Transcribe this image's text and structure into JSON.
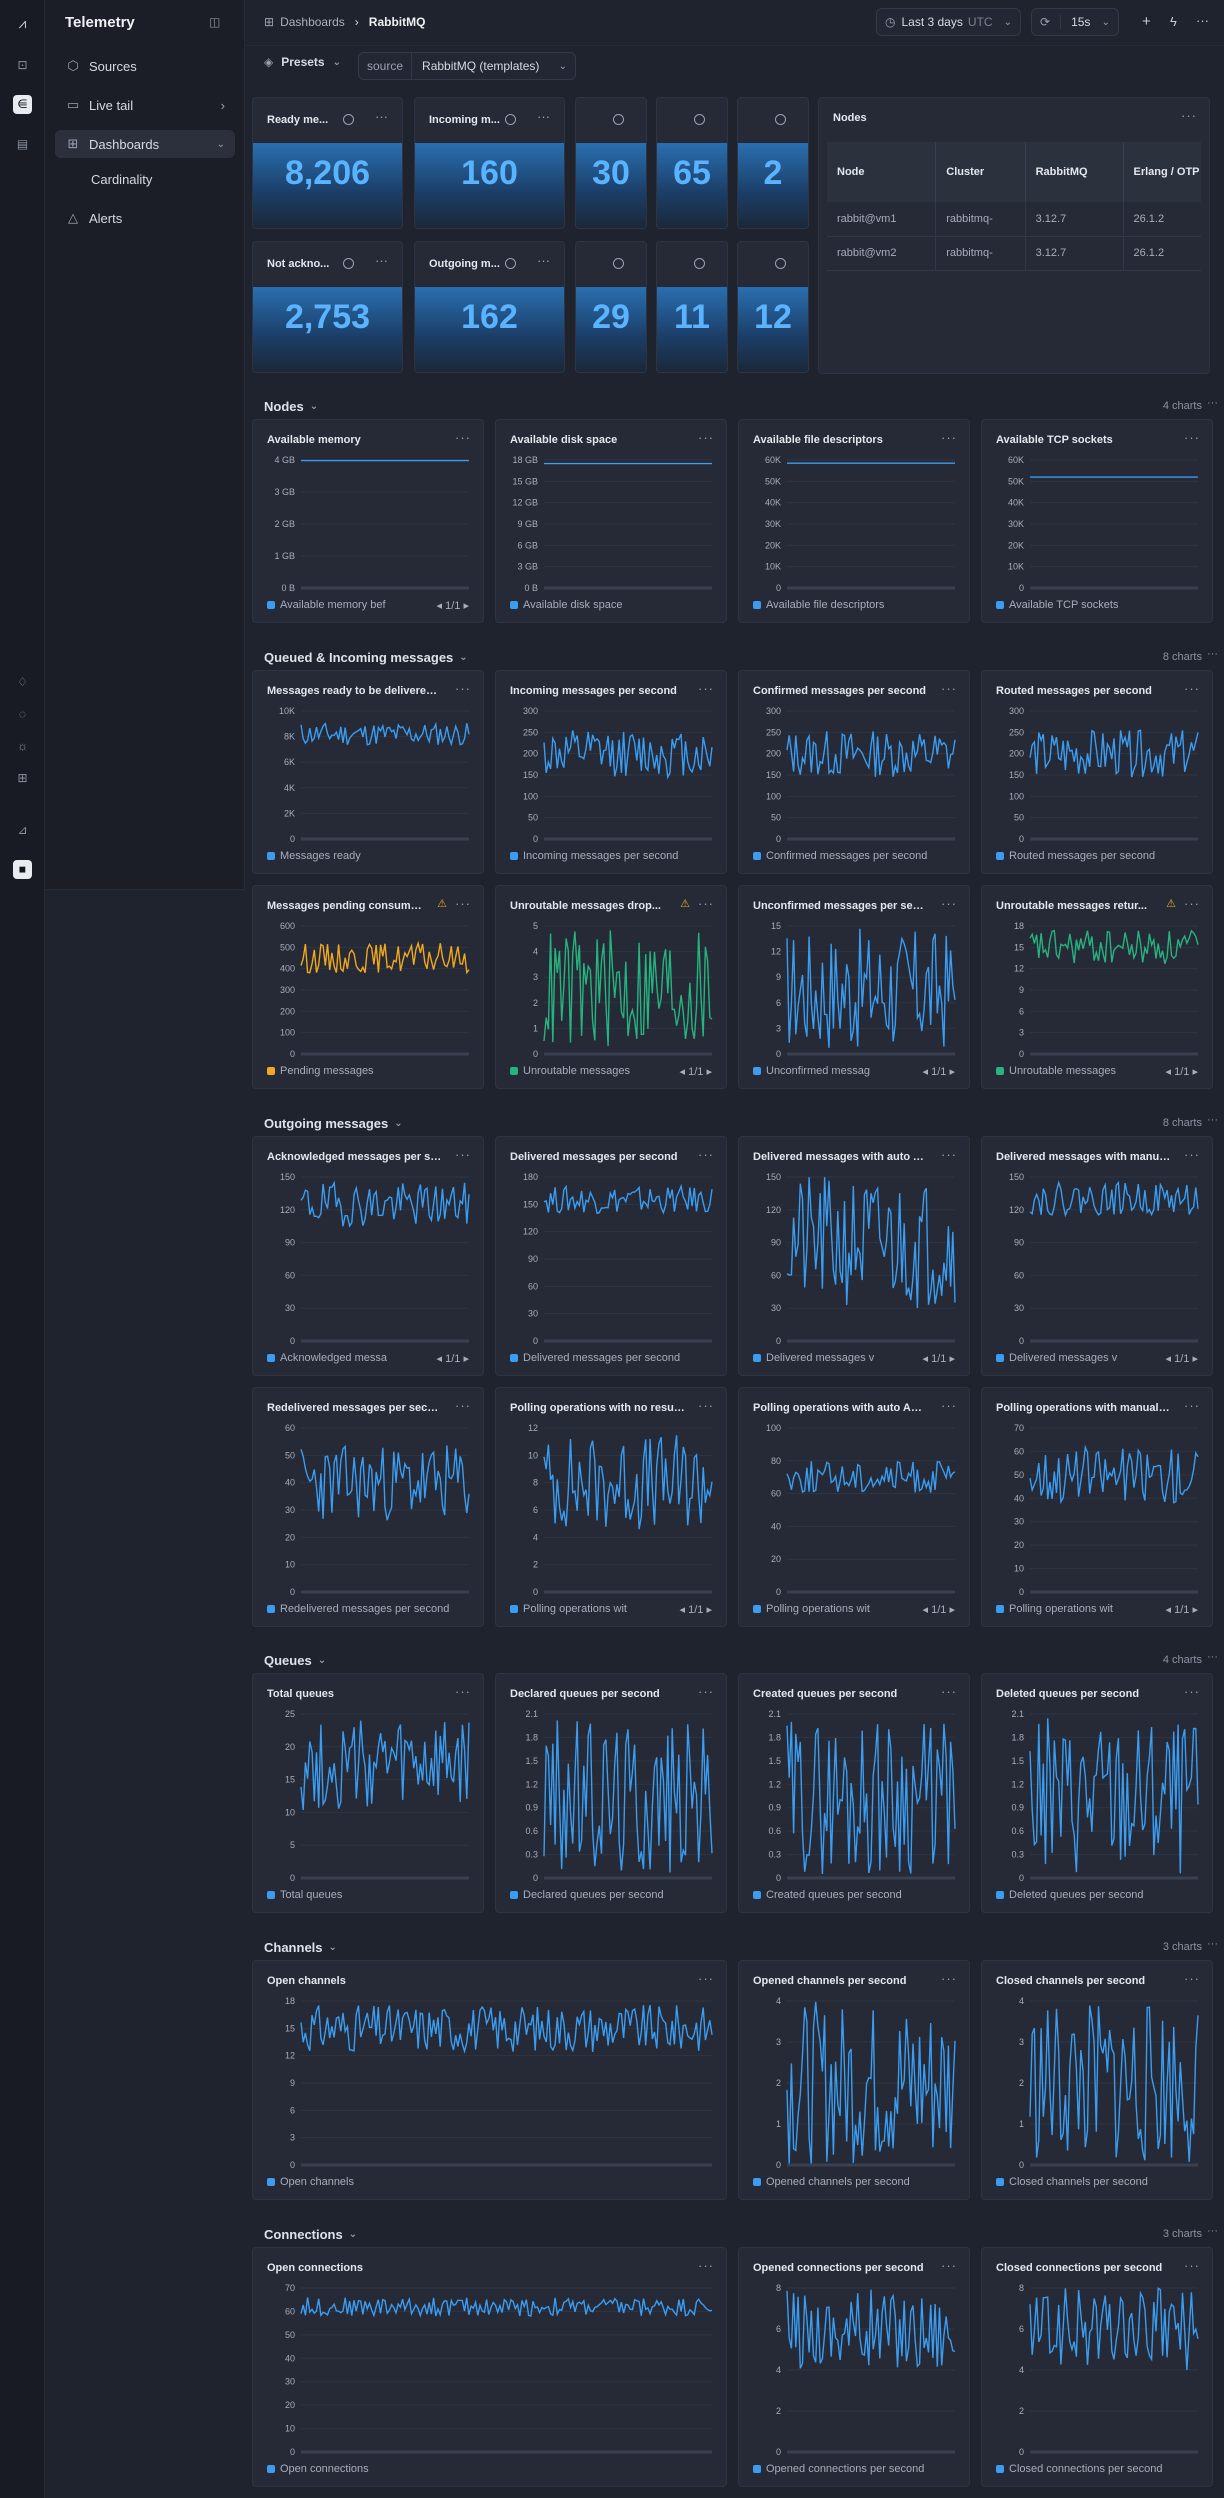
{
  "app": {
    "title": "Telemetry"
  },
  "sidebar": {
    "items": [
      {
        "label": "Sources"
      },
      {
        "label": "Live tail"
      },
      {
        "label": "Dashboards"
      },
      {
        "label": "Cardinality"
      },
      {
        "label": "Alerts"
      }
    ]
  },
  "breadcrumb": {
    "root": "Dashboards",
    "current": "RabbitMQ"
  },
  "toolbar": {
    "time_range": "Last 3 days",
    "timezone": "UTC",
    "refresh": "15s"
  },
  "presets": {
    "label": "Presets",
    "source_label": "source",
    "source_value": "RabbitMQ (templates)"
  },
  "stats": [
    {
      "title": "Ready me...",
      "value": "8,206"
    },
    {
      "title": "Incoming m...",
      "value": "160"
    },
    {
      "title": "",
      "value": "30"
    },
    {
      "title": "",
      "value": "65"
    },
    {
      "title": "",
      "value": "2"
    },
    {
      "title": "Not ackno...",
      "value": "2,753"
    },
    {
      "title": "Outgoing m...",
      "value": "162"
    },
    {
      "title": "",
      "value": "29"
    },
    {
      "title": "",
      "value": "11"
    },
    {
      "title": "",
      "value": "12"
    }
  ],
  "nodes_table": {
    "title": "Nodes",
    "columns": [
      "Node",
      "Cluster",
      "RabbitMQ",
      "Erlang / OTP"
    ],
    "rows": [
      [
        "rabbit@vm1",
        "rabbitmq-",
        "3.12.7",
        "26.1.2"
      ],
      [
        "rabbit@vm2",
        "rabbitmq-",
        "3.12.7",
        "26.1.2"
      ]
    ]
  },
  "colors": {
    "blue": "#3b9cf0",
    "orange": "#f0a81e",
    "green": "#26b380",
    "bg": "#1f232e",
    "panel": "#252a36"
  },
  "sections": [
    {
      "title": "Nodes",
      "count": "4 charts"
    },
    {
      "title": "Queued & Incoming messages",
      "count": "8 charts"
    },
    {
      "title": "Outgoing messages",
      "count": "8 charts"
    },
    {
      "title": "Queues",
      "count": "4 charts"
    },
    {
      "title": "Channels",
      "count": "3 charts"
    },
    {
      "title": "Connections",
      "count": "3 charts"
    }
  ],
  "chart_data": [
    {
      "id": "avail-mem",
      "type": "line",
      "title": "Available memory",
      "ylim": [
        0,
        4
      ],
      "ticks": [
        "4 GB",
        "3 GB",
        "2 GB",
        "1 GB",
        "0 B"
      ],
      "series": [
        {
          "name": "Available memory bef",
          "value": 3.98,
          "noise": 0,
          "color": "blue"
        }
      ],
      "pager": "1/1",
      "legend_label": "Available memory bef"
    },
    {
      "id": "avail-disk",
      "type": "line",
      "title": "Available disk space",
      "ylim": [
        0,
        18
      ],
      "ticks": [
        "18 GB",
        "15 GB",
        "12 GB",
        "9 GB",
        "6 GB",
        "3 GB",
        "0 B"
      ],
      "series": [
        {
          "name": "Available disk space",
          "value": 17.5,
          "noise": 0,
          "color": "blue"
        }
      ],
      "legend_label": "Available disk space"
    },
    {
      "id": "avail-fd",
      "type": "line",
      "title": "Available file descriptors",
      "ylim": [
        0,
        60000
      ],
      "ticks": [
        "60K",
        "50K",
        "40K",
        "30K",
        "20K",
        "10K",
        "0"
      ],
      "series": [
        {
          "name": "Available file descriptors",
          "value": 58500,
          "noise": 0,
          "color": "blue"
        }
      ],
      "legend_label": "Available file descriptors"
    },
    {
      "id": "avail-tcp",
      "type": "line",
      "title": "Available TCP sockets",
      "ylim": [
        0,
        60000
      ],
      "ticks": [
        "60K",
        "50K",
        "40K",
        "30K",
        "20K",
        "10K",
        "0"
      ],
      "series": [
        {
          "name": "Available TCP sockets",
          "value": 52000,
          "noise": 0,
          "color": "blue"
        }
      ],
      "legend_label": "Available TCP sockets"
    },
    {
      "id": "msg-ready",
      "type": "line",
      "title": "Messages ready to be delivered to...",
      "ylim": [
        0,
        10000
      ],
      "ticks": [
        "10K",
        "8K",
        "6K",
        "4K",
        "2K",
        "0"
      ],
      "series": [
        {
          "name": "Messages ready",
          "value": 8200,
          "noise": 900,
          "color": "blue"
        }
      ],
      "legend_label": "Messages ready"
    },
    {
      "id": "incoming",
      "type": "line",
      "title": "Incoming messages per second",
      "ylim": [
        0,
        300
      ],
      "ticks": [
        "300",
        "250",
        "200",
        "150",
        "100",
        "50",
        "0"
      ],
      "series": [
        {
          "name": "Incoming messages per second",
          "value": 200,
          "noise": 55,
          "color": "blue"
        }
      ],
      "legend_label": "Incoming messages per second"
    },
    {
      "id": "confirmed",
      "type": "line",
      "title": "Confirmed messages per second",
      "ylim": [
        0,
        300
      ],
      "ticks": [
        "300",
        "250",
        "200",
        "150",
        "100",
        "50",
        "0"
      ],
      "series": [
        {
          "name": "Confirmed messages per second",
          "value": 200,
          "noise": 55,
          "color": "blue"
        }
      ],
      "legend_label": "Confirmed messages per second"
    },
    {
      "id": "routed",
      "type": "line",
      "title": "Routed messages per second",
      "ylim": [
        0,
        300
      ],
      "ticks": [
        "300",
        "250",
        "200",
        "150",
        "100",
        "50",
        "0"
      ],
      "series": [
        {
          "name": "Routed messages per second",
          "value": 200,
          "noise": 55,
          "color": "blue"
        }
      ],
      "legend_label": "Routed messages per second"
    },
    {
      "id": "pending",
      "type": "line",
      "title": "Messages pending consume...",
      "ylim": [
        0,
        600
      ],
      "ticks": [
        "600",
        "500",
        "400",
        "300",
        "200",
        "100",
        "0"
      ],
      "series": [
        {
          "name": "Pending messages",
          "value": 450,
          "noise": 70,
          "color": "orange"
        }
      ],
      "legend_label": "Pending messages",
      "warn": true
    },
    {
      "id": "unroutable-drop",
      "type": "line",
      "title": "Unroutable messages drop...",
      "ylim": [
        0,
        5
      ],
      "ticks": [
        "5",
        "4",
        "3",
        "2",
        "1",
        "0"
      ],
      "series": [
        {
          "name": "Unroutable messages",
          "value": 2.5,
          "noise": 2.4,
          "color": "green"
        }
      ],
      "legend_label": "Unroutable messages",
      "pager": "1/1",
      "warn": true
    },
    {
      "id": "unconfirmed",
      "type": "line",
      "title": "Unconfirmed messages per seco...",
      "ylim": [
        0,
        15
      ],
      "ticks": [
        "15",
        "12",
        "9",
        "6",
        "3",
        "0"
      ],
      "series": [
        {
          "name": "Unconfirmed messag",
          "value": 7.5,
          "noise": 7.2,
          "color": "blue"
        }
      ],
      "legend_label": "Unconfirmed messag",
      "pager": "1/1"
    },
    {
      "id": "unroutable-ret",
      "type": "line",
      "title": "Unroutable messages retur...",
      "ylim": [
        0,
        18
      ],
      "ticks": [
        "18",
        "15",
        "12",
        "9",
        "6",
        "3",
        "0"
      ],
      "series": [
        {
          "name": "Unroutable messages",
          "value": 15,
          "noise": 2.5,
          "color": "green"
        }
      ],
      "legend_label": "Unroutable messages",
      "pager": "1/1",
      "warn": true
    },
    {
      "id": "acked",
      "type": "line",
      "title": "Acknowledged messages per se...",
      "ylim": [
        0,
        150
      ],
      "ticks": [
        "150",
        "120",
        "90",
        "60",
        "30",
        "0"
      ],
      "series": [
        {
          "name": "Acknowledged messa",
          "value": 125,
          "noise": 20,
          "color": "blue"
        }
      ],
      "legend_label": "Acknowledged messa",
      "pager": "1/1"
    },
    {
      "id": "delivered",
      "type": "line",
      "title": "Delivered messages per second",
      "ylim": [
        0,
        180
      ],
      "ticks": [
        "180",
        "150",
        "120",
        "90",
        "60",
        "30",
        "0"
      ],
      "series": [
        {
          "name": "Delivered messages per second",
          "value": 155,
          "noise": 15,
          "color": "blue"
        }
      ],
      "legend_label": "Delivered messages per second"
    },
    {
      "id": "deliv-auto",
      "type": "line",
      "title": "Delivered messages with auto AC...",
      "ylim": [
        0,
        150
      ],
      "ticks": [
        "150",
        "120",
        "90",
        "60",
        "30",
        "0"
      ],
      "series": [
        {
          "name": "Delivered messages v",
          "value": 90,
          "noise": 60,
          "color": "blue"
        }
      ],
      "legend_label": "Delivered messages v",
      "pager": "1/1"
    },
    {
      "id": "deliv-manual",
      "type": "line",
      "title": "Delivered messages with manual ...",
      "ylim": [
        0,
        150
      ],
      "ticks": [
        "150",
        "120",
        "90",
        "60",
        "30",
        "0"
      ],
      "series": [
        {
          "name": "Delivered messages v",
          "value": 130,
          "noise": 15,
          "color": "blue"
        }
      ],
      "legend_label": "Delivered messages v",
      "pager": "1/1"
    },
    {
      "id": "redelivered",
      "type": "line",
      "title": "Redelivered messages per second",
      "ylim": [
        0,
        60
      ],
      "ticks": [
        "60",
        "50",
        "40",
        "30",
        "20",
        "10",
        "0"
      ],
      "series": [
        {
          "name": "Redelivered messages per second",
          "value": 40,
          "noise": 14,
          "color": "blue"
        }
      ],
      "legend_label": "Redelivered messages per second"
    },
    {
      "id": "poll-noresult",
      "type": "line",
      "title": "Polling operations with no result p...",
      "ylim": [
        0,
        12
      ],
      "ticks": [
        "12",
        "10",
        "8",
        "6",
        "4",
        "2",
        "0"
      ],
      "series": [
        {
          "name": "Polling operations wit",
          "value": 8,
          "noise": 3.5,
          "color": "blue"
        }
      ],
      "legend_label": "Polling operations wit",
      "pager": "1/1"
    },
    {
      "id": "poll-auto",
      "type": "line",
      "title": "Polling operations with auto ACK p...",
      "ylim": [
        0,
        100
      ],
      "ticks": [
        "100",
        "80",
        "60",
        "40",
        "20",
        "0"
      ],
      "series": [
        {
          "name": "Polling operations wit",
          "value": 70,
          "noise": 10,
          "color": "blue"
        }
      ],
      "legend_label": "Polling operations wit",
      "pager": "1/1"
    },
    {
      "id": "poll-manual",
      "type": "line",
      "title": "Polling operations with manual AC...",
      "ylim": [
        0,
        70
      ],
      "ticks": [
        "70",
        "60",
        "50",
        "40",
        "30",
        "20",
        "10",
        "0"
      ],
      "series": [
        {
          "name": "Polling operations wit",
          "value": 50,
          "noise": 12,
          "color": "blue"
        }
      ],
      "legend_label": "Polling operations wit",
      "pager": "1/1"
    },
    {
      "id": "total-queues",
      "type": "line",
      "title": "Total queues",
      "ylim": [
        0,
        25
      ],
      "ticks": [
        "25",
        "20",
        "15",
        "10",
        "5",
        "0"
      ],
      "series": [
        {
          "name": "Total queues",
          "value": 17,
          "noise": 7,
          "color": "blue"
        }
      ],
      "legend_label": "Total queues"
    },
    {
      "id": "declared-queues",
      "type": "line",
      "title": "Declared queues per second",
      "ylim": [
        0,
        2.1
      ],
      "ticks": [
        "2.1",
        "1.8",
        "1.5",
        "1.2",
        "0.9",
        "0.6",
        "0.3",
        "0"
      ],
      "series": [
        {
          "name": "Declared queues per second",
          "value": 1.05,
          "noise": 1.0,
          "color": "blue"
        }
      ],
      "legend_label": "Declared queues per second"
    },
    {
      "id": "created-queues",
      "type": "line",
      "title": "Created queues per second",
      "ylim": [
        0,
        2.1
      ],
      "ticks": [
        "2.1",
        "1.8",
        "1.5",
        "1.2",
        "0.9",
        "0.6",
        "0.3",
        "0"
      ],
      "series": [
        {
          "name": "Created queues per second",
          "value": 1.05,
          "noise": 1.0,
          "color": "blue"
        }
      ],
      "legend_label": "Created queues per second"
    },
    {
      "id": "deleted-queues",
      "type": "line",
      "title": "Deleted queues per second",
      "ylim": [
        0,
        2.1
      ],
      "ticks": [
        "2.1",
        "1.8",
        "1.5",
        "1.2",
        "0.9",
        "0.6",
        "0.3",
        "0"
      ],
      "series": [
        {
          "name": "Deleted queues per second",
          "value": 1.05,
          "noise": 1.0,
          "color": "blue"
        }
      ],
      "legend_label": "Deleted queues per second"
    },
    {
      "id": "open-channels",
      "type": "line",
      "title": "Open channels",
      "ylim": [
        0,
        18
      ],
      "ticks": [
        "18",
        "15",
        "12",
        "9",
        "6",
        "3",
        "0"
      ],
      "series": [
        {
          "name": "Open channels",
          "value": 15,
          "noise": 2.6,
          "color": "blue"
        }
      ],
      "legend_label": "Open channels"
    },
    {
      "id": "opened-channels",
      "type": "line",
      "title": "Opened channels per second",
      "ylim": [
        0,
        4
      ],
      "ticks": [
        "4",
        "3",
        "2",
        "1",
        "0"
      ],
      "series": [
        {
          "name": "Opened channels per second",
          "value": 2,
          "noise": 2,
          "color": "blue"
        }
      ],
      "legend_label": "Opened channels per second"
    },
    {
      "id": "closed-channels",
      "type": "line",
      "title": "Closed channels per second",
      "ylim": [
        0,
        4
      ],
      "ticks": [
        "4",
        "3",
        "2",
        "1",
        "0"
      ],
      "series": [
        {
          "name": "Closed channels per second",
          "value": 2,
          "noise": 2,
          "color": "blue"
        }
      ],
      "legend_label": "Closed channels per second"
    },
    {
      "id": "open-conns",
      "type": "line",
      "title": "Open connections",
      "ylim": [
        0,
        70
      ],
      "ticks": [
        "70",
        "60",
        "50",
        "40",
        "30",
        "20",
        "10",
        "0"
      ],
      "series": [
        {
          "name": "Open connections",
          "value": 62,
          "noise": 4,
          "color": "blue"
        }
      ],
      "legend_label": "Open connections"
    },
    {
      "id": "opened-conns",
      "type": "line",
      "title": "Opened connections per second",
      "ylim": [
        0,
        8
      ],
      "ticks": [
        "8",
        "6",
        "4",
        "2",
        "0"
      ],
      "series": [
        {
          "name": "Opened connections per second",
          "value": 6,
          "noise": 2,
          "color": "blue"
        }
      ],
      "legend_label": "Opened connections per second"
    },
    {
      "id": "closed-conns",
      "type": "line",
      "title": "Closed connections per second",
      "ylim": [
        0,
        8
      ],
      "ticks": [
        "8",
        "6",
        "4",
        "2",
        "0"
      ],
      "series": [
        {
          "name": "Closed connections per second",
          "value": 6,
          "noise": 2,
          "color": "blue"
        }
      ],
      "legend_label": "Closed connections per second"
    }
  ]
}
